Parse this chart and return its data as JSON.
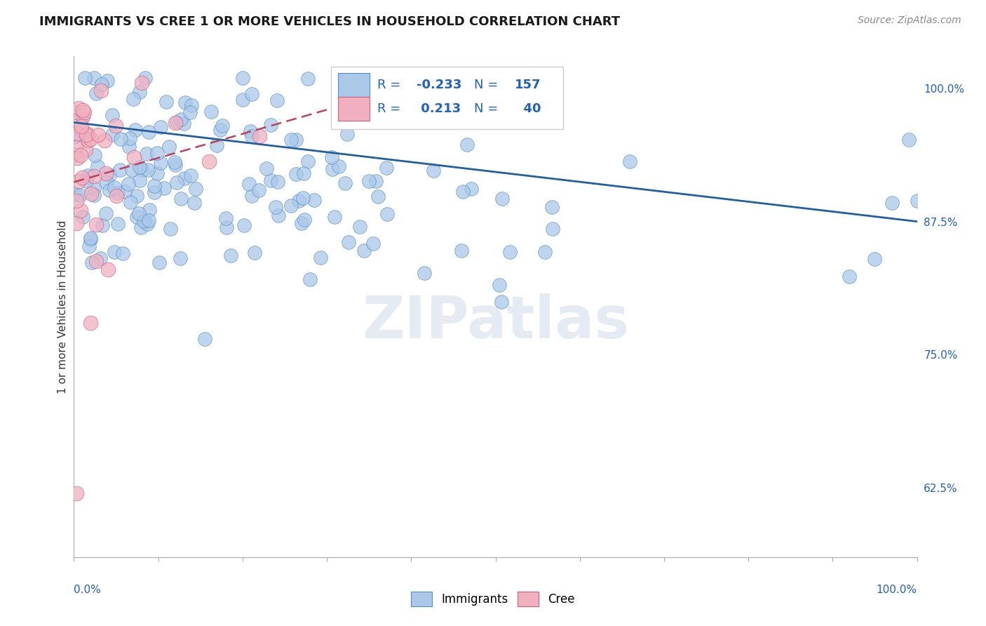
{
  "title": "IMMIGRANTS VS CREE 1 OR MORE VEHICLES IN HOUSEHOLD CORRELATION CHART",
  "source": "Source: ZipAtlas.com",
  "ylabel": "1 or more Vehicles in Household",
  "immigrants_R": -0.233,
  "immigrants_N": 157,
  "cree_R": 0.213,
  "cree_N": 40,
  "immigrants_color": "#aac8e8",
  "immigrants_edge_color": "#5090c8",
  "cree_color": "#f0b0c0",
  "cree_edge_color": "#d06080",
  "imm_line_color": "#2060a0",
  "cree_line_color": "#c04060",
  "right_yticks": [
    0.625,
    0.75,
    0.875,
    1.0
  ],
  "right_yticklabels": [
    "62.5%",
    "75.0%",
    "87.5%",
    "100.0%"
  ],
  "watermark": "ZIPatlas",
  "background_color": "#ffffff",
  "grid_color": "#dddddd",
  "ymin": 0.56,
  "ymax": 1.03,
  "xmin": 0.0,
  "xmax": 1.0,
  "legend_text_color": "#2060c0",
  "title_color": "#1a1a1a"
}
